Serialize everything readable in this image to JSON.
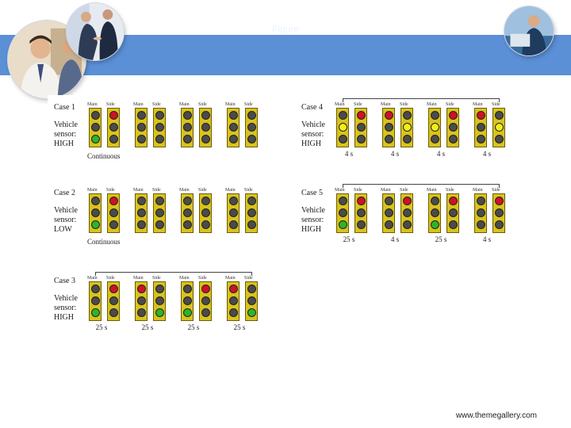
{
  "slide": {
    "banner_title": "Figure",
    "footer_url": "www.themegallery.com"
  },
  "lamp_colors": {
    "red": "#d0102a",
    "yellow": "#f0ee1a",
    "green": "#2bb52b",
    "off": "#4b4b4b"
  },
  "figure": {
    "head_labels": {
      "main": "Main",
      "side": "Side"
    },
    "cases": [
      {
        "title": "Case 1",
        "sensor_lines": [
          "Vehicle",
          "sensor:",
          "HIGH"
        ],
        "continuous_label": "Continuous",
        "cycle_arrow": false,
        "frames": [
          {
            "main": "off",
            "side": "red",
            "extra_main": "off",
            "extra_side": "off",
            "lower_main": "green",
            "lower_side": "off",
            "duration": ""
          },
          {
            "main": "off",
            "side": "off",
            "extra_main": "off",
            "extra_side": "off",
            "lower_main": "off",
            "lower_side": "off",
            "duration": ""
          },
          {
            "main": "off",
            "side": "off",
            "extra_main": "off",
            "extra_side": "off",
            "lower_main": "off",
            "lower_side": "off",
            "duration": ""
          },
          {
            "main": "off",
            "side": "off",
            "extra_main": "off",
            "extra_side": "off",
            "lower_main": "off",
            "lower_side": "off",
            "duration": ""
          }
        ]
      },
      {
        "title": "Case 2",
        "sensor_lines": [
          "Vehicle",
          "sensor:",
          "LOW"
        ],
        "continuous_label": "Continuous",
        "cycle_arrow": false,
        "frames": [
          {
            "main": "off",
            "side": "red",
            "extra_main": "off",
            "extra_side": "off",
            "lower_main": "green",
            "lower_side": "off",
            "duration": ""
          },
          {
            "main": "off",
            "side": "off",
            "extra_main": "off",
            "extra_side": "off",
            "lower_main": "off",
            "lower_side": "off",
            "duration": ""
          },
          {
            "main": "off",
            "side": "off",
            "extra_main": "off",
            "extra_side": "off",
            "lower_main": "off",
            "lower_side": "off",
            "duration": ""
          },
          {
            "main": "off",
            "side": "off",
            "extra_main": "off",
            "extra_side": "off",
            "lower_main": "off",
            "lower_side": "off",
            "duration": ""
          }
        ]
      },
      {
        "title": "Case 3",
        "sensor_lines": [
          "Vehicle",
          "sensor:",
          "HIGH"
        ],
        "continuous_label": "",
        "cycle_arrow": true,
        "frames": [
          {
            "main": "off",
            "side": "red",
            "extra_main": "off",
            "extra_side": "off",
            "lower_main": "green",
            "lower_side": "off",
            "duration": "25 s"
          },
          {
            "main": "red",
            "side": "off",
            "extra_main": "off",
            "extra_side": "off",
            "lower_main": "off",
            "lower_side": "green",
            "duration": "25 s"
          },
          {
            "main": "off",
            "side": "red",
            "extra_main": "off",
            "extra_side": "off",
            "lower_main": "green",
            "lower_side": "off",
            "duration": "25 s"
          },
          {
            "main": "red",
            "side": "off",
            "extra_main": "off",
            "extra_side": "off",
            "lower_main": "off",
            "lower_side": "green",
            "duration": "25 s"
          }
        ]
      },
      {
        "title": "Case 4",
        "sensor_lines": [
          "Vehicle",
          "sensor:",
          "HIGH"
        ],
        "continuous_label": "",
        "cycle_arrow": true,
        "frames": [
          {
            "main": "off",
            "side": "red",
            "extra_main": "yellow",
            "extra_side": "off",
            "lower_main": "off",
            "lower_side": "off",
            "duration": "4 s"
          },
          {
            "main": "red",
            "side": "off",
            "extra_main": "off",
            "extra_side": "yellow",
            "lower_main": "off",
            "lower_side": "off",
            "duration": "4 s"
          },
          {
            "main": "off",
            "side": "red",
            "extra_main": "yellow",
            "extra_side": "off",
            "lower_main": "off",
            "lower_side": "off",
            "duration": "4 s"
          },
          {
            "main": "red",
            "side": "off",
            "extra_main": "off",
            "extra_side": "yellow",
            "lower_main": "off",
            "lower_side": "off",
            "duration": "4 s"
          }
        ]
      },
      {
        "title": "Case 5",
        "sensor_lines": [
          "Vehicle",
          "sensor:",
          "HIGH"
        ],
        "continuous_label": "",
        "cycle_arrow": true,
        "frames": [
          {
            "main": "off",
            "side": "red",
            "extra_main": "off",
            "extra_side": "off",
            "lower_main": "green",
            "lower_side": "off",
            "duration": "25 s"
          },
          {
            "main": "off",
            "side": "red",
            "extra_main": "off",
            "extra_side": "off",
            "lower_main": "off",
            "lower_side": "off",
            "duration": "4 s"
          },
          {
            "main": "off",
            "side": "red",
            "extra_main": "off",
            "extra_side": "off",
            "lower_main": "green",
            "lower_side": "off",
            "duration": "25 s"
          },
          {
            "main": "off",
            "side": "red",
            "extra_main": "off",
            "extra_side": "off",
            "lower_main": "off",
            "lower_side": "off",
            "duration": "4 s"
          }
        ]
      }
    ]
  }
}
